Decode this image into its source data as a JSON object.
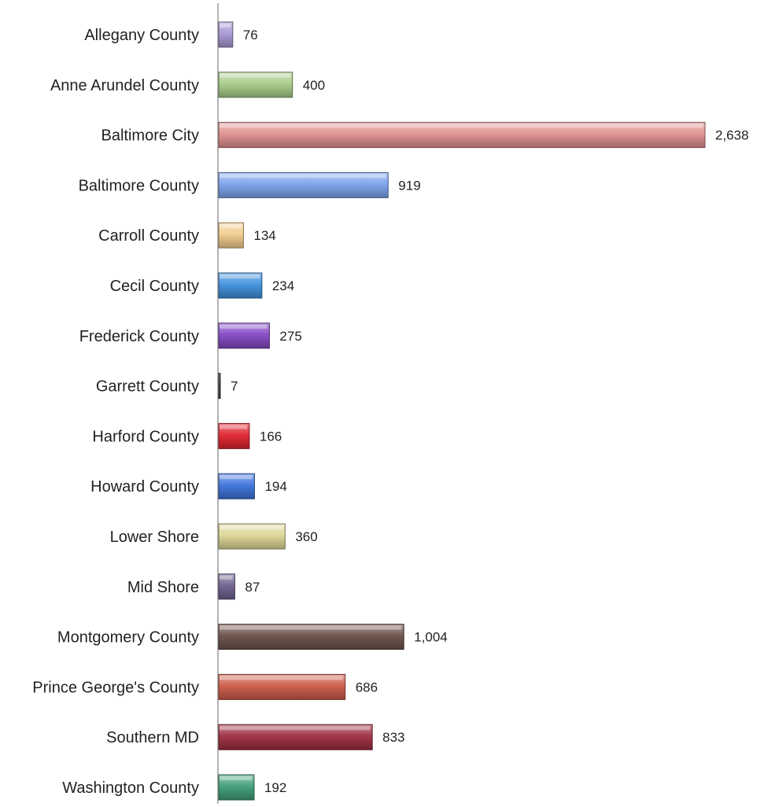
{
  "chart_data": {
    "type": "bar",
    "orientation": "horizontal",
    "title": "",
    "xlabel": "",
    "ylabel": "",
    "grid": false,
    "legend": "none",
    "xlim": [
      0,
      2638
    ],
    "categories": [
      "Allegany County",
      "Anne Arundel County",
      "Baltimore City",
      "Baltimore County",
      "Carroll County",
      "Cecil County",
      "Frederick County",
      "Garrett County",
      "Harford County",
      "Howard County",
      "Lower Shore",
      "Mid Shore",
      "Montgomery County",
      "Prince George's County",
      "Southern MD",
      "Washington County"
    ],
    "values": [
      76,
      400,
      2638,
      919,
      134,
      234,
      275,
      7,
      166,
      194,
      360,
      87,
      1004,
      686,
      833,
      192
    ],
    "value_labels": [
      "76",
      "400",
      "2,638",
      "919",
      "134",
      "234",
      "275",
      "7",
      "166",
      "194",
      "360",
      "87",
      "1,004",
      "686",
      "833",
      "192"
    ],
    "colors": [
      "#a898d4",
      "#a8cc88",
      "#e08f8f",
      "#7aa2ec",
      "#f2cc8e",
      "#3f8fdc",
      "#8448c4",
      "#444444",
      "#e0232e",
      "#3c72dc",
      "#ddd696",
      "#6e608e",
      "#6a5048",
      "#cc5a48",
      "#9e2c40",
      "#3e9e78"
    ]
  }
}
